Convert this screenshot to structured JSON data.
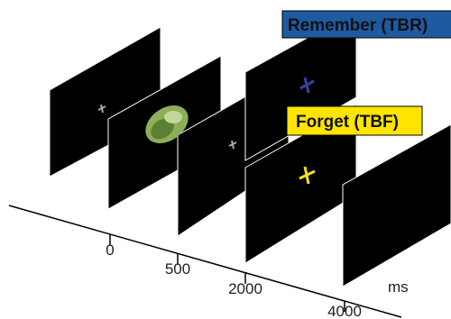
{
  "labels": {
    "remember": "Remember (TBR)",
    "forget": "Forget (TBF)"
  },
  "axis": {
    "ticks": [
      "0",
      "500",
      "2000",
      "4000"
    ],
    "unit": "ms"
  }
}
